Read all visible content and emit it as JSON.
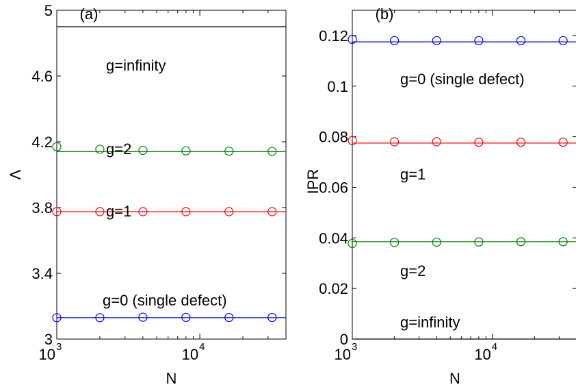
{
  "chart_data": [
    {
      "type": "line",
      "panel_label": "(a)",
      "xlabel": "N",
      "ylabel": "Λ",
      "xscale": "log",
      "xlim": [
        1000,
        40000
      ],
      "ylim": [
        3.0,
        5.0
      ],
      "xticks": [
        1000,
        10000
      ],
      "xtick_labels": [
        {
          "base": "10",
          "exp": "3"
        },
        {
          "base": "10",
          "exp": "4"
        }
      ],
      "yticks": [
        3,
        3.4,
        3.8,
        4.2,
        4.6,
        5
      ],
      "ytick_labels": [
        "3",
        "3.4",
        "3.8",
        "4.2",
        "4.6",
        "5"
      ],
      "grid": false,
      "x": [
        1000,
        2000,
        4000,
        8000,
        16000,
        32000
      ],
      "series": [
        {
          "name": "g=infinity",
          "color": "#000000",
          "line_value": 4.9,
          "markers": []
        },
        {
          "name": "g=2",
          "color": "#008000",
          "line_value": 4.14,
          "markers": [
            4.17,
            4.155,
            4.148,
            4.145,
            4.143,
            4.142
          ]
        },
        {
          "name": "g=1",
          "color": "#ff0000",
          "line_value": 3.775,
          "markers": [
            3.775,
            3.775,
            3.775,
            3.775,
            3.775,
            3.775
          ]
        },
        {
          "name": "g=0 (single defect)",
          "color": "#0000ff",
          "line_value": 3.13,
          "markers": [
            3.13,
            3.13,
            3.133,
            3.132,
            3.131,
            3.131
          ]
        }
      ]
    },
    {
      "type": "line",
      "panel_label": "(b)",
      "xlabel": "N",
      "ylabel": "IPR",
      "xscale": "log",
      "xlim": [
        1000,
        40000
      ],
      "ylim": [
        0,
        0.13
      ],
      "xticks": [
        1000,
        10000
      ],
      "xtick_labels": [
        {
          "base": "10",
          "exp": "3"
        },
        {
          "base": "10",
          "exp": "4"
        }
      ],
      "yticks": [
        0,
        0.02,
        0.04,
        0.06,
        0.08,
        0.1,
        0.12
      ],
      "ytick_labels": [
        "0",
        "0.02",
        "0.04",
        "0.06",
        "0.08",
        "0.1",
        "0.12"
      ],
      "grid": false,
      "x": [
        1000,
        2000,
        4000,
        8000,
        16000,
        32000
      ],
      "series": [
        {
          "name": "g=0 (single defect)",
          "color": "#0000ff",
          "line_value": 0.1175,
          "markers": [
            0.1185,
            0.118,
            0.118,
            0.118,
            0.118,
            0.118
          ]
        },
        {
          "name": "g=1",
          "color": "#ff0000",
          "line_value": 0.0775,
          "markers": [
            0.0785,
            0.078,
            0.078,
            0.0778,
            0.0778,
            0.0778
          ]
        },
        {
          "name": "g=2",
          "color": "#008000",
          "line_value": 0.0385,
          "markers": [
            0.0378,
            0.0382,
            0.0383,
            0.0384,
            0.0385,
            0.0385
          ]
        },
        {
          "name": "g=infinity",
          "color": "#000000",
          "line_value": 0.0,
          "markers": []
        }
      ]
    }
  ]
}
